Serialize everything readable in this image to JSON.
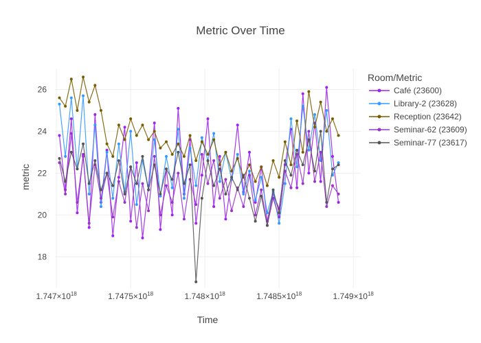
{
  "chart_data": {
    "type": "line",
    "title": "Metric Over Time",
    "xlabel": "Time",
    "ylabel": "metric",
    "xlim": [
      1.74699e+18,
      1.74905e+18
    ],
    "ylim": [
      16.5,
      27.0
    ],
    "x_ticks": [
      1.747e+18,
      1.7475e+18,
      1.748e+18,
      1.7485e+18,
      1.749e+18
    ],
    "x_tick_labels": [
      "1.747×10^18",
      "1.7475×10^18",
      "1.748×10^18",
      "1.7485×10^18",
      "1.749×10^18"
    ],
    "y_ticks": [
      18,
      20,
      22,
      24,
      26
    ],
    "y_tick_labels": [
      "18",
      "20",
      "22",
      "24",
      "26"
    ],
    "grid": true,
    "legend_title": "Room/Metric",
    "legend_position": "top-right",
    "series": [
      {
        "name": "Café (23600)",
        "color": "#a020f0",
        "x": [
          1.74702e+18,
          1.74706e+18,
          1.7471e+18,
          1.74714e+18,
          1.74718e+18,
          1.74722e+18,
          1.74726e+18,
          1.7473e+18,
          1.74734e+18,
          1.74738e+18,
          1.74742e+18,
          1.74746e+18,
          1.7475e+18,
          1.74754e+18,
          1.74758e+18,
          1.74762e+18,
          1.74766e+18,
          1.7477e+18,
          1.74774e+18,
          1.74778e+18,
          1.74782e+18,
          1.74786e+18,
          1.7479e+18,
          1.74794e+18,
          1.74798e+18,
          1.74802e+18,
          1.74806e+18,
          1.7481e+18,
          1.74814e+18,
          1.74818e+18,
          1.74822e+18,
          1.74826e+18,
          1.7483e+18,
          1.74834e+18,
          1.74838e+18,
          1.74842e+18,
          1.74846e+18,
          1.7485e+18,
          1.74854e+18,
          1.74858e+18,
          1.74862e+18,
          1.74866e+18,
          1.7487e+18,
          1.74874e+18,
          1.74878e+18,
          1.74882e+18,
          1.74886e+18,
          1.7489e+18
        ],
        "y": [
          23.8,
          21.2,
          24.6,
          20.1,
          22.9,
          19.4,
          24.8,
          20.6,
          23.1,
          19.0,
          21.8,
          24.2,
          19.7,
          22.5,
          18.9,
          21.4,
          24.4,
          19.3,
          22.2,
          20.0,
          25.1,
          21.0,
          23.6,
          19.6,
          21.9,
          24.6,
          20.4,
          22.8,
          19.8,
          21.7,
          24.3,
          21.1,
          23.0,
          20.6,
          22.3,
          19.7,
          21.0,
          20.3,
          22.4,
          24.1,
          21.3,
          25.8,
          22.0,
          24.4,
          21.6,
          26.1,
          22.8,
          20.6
        ]
      },
      {
        "name": "Library-2 (23628)",
        "color": "#3399ff",
        "x": [
          1.74702e+18,
          1.74706e+18,
          1.7471e+18,
          1.74714e+18,
          1.74718e+18,
          1.74722e+18,
          1.74726e+18,
          1.7473e+18,
          1.74734e+18,
          1.74738e+18,
          1.74742e+18,
          1.74746e+18,
          1.7475e+18,
          1.74754e+18,
          1.74758e+18,
          1.74762e+18,
          1.74766e+18,
          1.7477e+18,
          1.74774e+18,
          1.74778e+18,
          1.74782e+18,
          1.74786e+18,
          1.7479e+18,
          1.74794e+18,
          1.74798e+18,
          1.74802e+18,
          1.74806e+18,
          1.7481e+18,
          1.74814e+18,
          1.74818e+18,
          1.74822e+18,
          1.74826e+18,
          1.7483e+18,
          1.74834e+18,
          1.74838e+18,
          1.74842e+18,
          1.74846e+18,
          1.7485e+18,
          1.74854e+18,
          1.74858e+18,
          1.74862e+18,
          1.74866e+18,
          1.7487e+18,
          1.74874e+18,
          1.74878e+18,
          1.74882e+18,
          1.74886e+18,
          1.7489e+18
        ],
        "y": [
          25.3,
          22.8,
          25.6,
          22.2,
          25.7,
          21.0,
          24.3,
          20.4,
          23.0,
          20.8,
          23.4,
          21.1,
          24.0,
          20.5,
          22.6,
          21.2,
          23.6,
          20.9,
          22.8,
          21.3,
          24.1,
          20.8,
          23.2,
          21.4,
          23.7,
          22.6,
          23.9,
          21.6,
          23.0,
          21.7,
          22.9,
          21.0,
          22.1,
          20.7,
          21.8,
          20.1,
          21.1,
          19.6,
          21.5,
          24.6,
          22.3,
          25.2,
          23.1,
          24.8,
          22.6,
          25.0,
          21.9,
          22.5
        ]
      },
      {
        "name": "Reception (23642)",
        "color": "#7a5c00",
        "x": [
          1.74702e+18,
          1.74706e+18,
          1.7471e+18,
          1.74714e+18,
          1.74718e+18,
          1.74722e+18,
          1.74726e+18,
          1.7473e+18,
          1.74734e+18,
          1.74738e+18,
          1.74742e+18,
          1.74746e+18,
          1.7475e+18,
          1.74754e+18,
          1.74758e+18,
          1.74762e+18,
          1.74766e+18,
          1.7477e+18,
          1.74774e+18,
          1.74778e+18,
          1.74782e+18,
          1.74786e+18,
          1.7479e+18,
          1.74794e+18,
          1.74798e+18,
          1.74802e+18,
          1.74806e+18,
          1.7481e+18,
          1.74814e+18,
          1.74818e+18,
          1.74822e+18,
          1.74826e+18,
          1.7483e+18,
          1.74834e+18,
          1.74838e+18,
          1.74842e+18,
          1.74846e+18,
          1.7485e+18,
          1.74854e+18,
          1.74858e+18,
          1.74862e+18,
          1.74866e+18,
          1.7487e+18,
          1.74874e+18,
          1.74878e+18,
          1.74882e+18,
          1.74886e+18,
          1.7489e+18
        ],
        "y": [
          25.6,
          25.2,
          26.5,
          25.0,
          26.6,
          25.4,
          26.2,
          25.0,
          23.4,
          22.8,
          24.3,
          23.6,
          24.6,
          23.8,
          24.3,
          23.6,
          24.0,
          23.2,
          23.5,
          22.9,
          23.4,
          22.8,
          23.8,
          22.6,
          23.5,
          22.9,
          23.6,
          22.4,
          23.0,
          22.1,
          22.7,
          21.8,
          22.4,
          21.6,
          22.3,
          21.4,
          22.6,
          21.8,
          23.5,
          22.4,
          24.5,
          23.0,
          25.9,
          24.2,
          25.4,
          24.0,
          24.6,
          23.8
        ]
      },
      {
        "name": "Seminar-62 (23609)",
        "color": "#9933cc",
        "x": [
          1.74702e+18,
          1.74706e+18,
          1.7471e+18,
          1.74714e+18,
          1.74718e+18,
          1.74722e+18,
          1.74726e+18,
          1.7473e+18,
          1.74734e+18,
          1.74738e+18,
          1.74742e+18,
          1.74746e+18,
          1.7475e+18,
          1.74754e+18,
          1.74758e+18,
          1.74762e+18,
          1.74766e+18,
          1.7477e+18,
          1.74774e+18,
          1.74778e+18,
          1.74782e+18,
          1.74786e+18,
          1.7479e+18,
          1.74794e+18,
          1.74798e+18,
          1.74802e+18,
          1.74806e+18,
          1.7481e+18,
          1.74814e+18,
          1.74818e+18,
          1.74822e+18,
          1.74826e+18,
          1.7483e+18,
          1.74834e+18,
          1.74838e+18,
          1.74842e+18,
          1.74846e+18,
          1.7485e+18,
          1.74854e+18,
          1.74858e+18,
          1.74862e+18,
          1.74866e+18,
          1.7487e+18,
          1.74874e+18,
          1.74878e+18,
          1.74882e+18,
          1.74886e+18,
          1.7489e+18
        ],
        "y": [
          22.5,
          21.0,
          23.9,
          20.6,
          22.8,
          19.6,
          22.4,
          20.8,
          22.0,
          19.9,
          21.6,
          20.6,
          22.3,
          19.4,
          21.5,
          20.2,
          22.8,
          20.0,
          21.4,
          20.6,
          22.0,
          19.8,
          21.7,
          20.5,
          22.9,
          21.5,
          22.6,
          20.8,
          21.7,
          20.2,
          21.3,
          20.4,
          21.9,
          20.0,
          21.2,
          19.5,
          20.8,
          19.9,
          22.1,
          21.3,
          22.9,
          21.5,
          24.0,
          21.6,
          23.0,
          20.4,
          21.4,
          21.0
        ]
      },
      {
        "name": "Seminar-77 (23617)",
        "color": "#555555",
        "x": [
          1.74702e+18,
          1.74706e+18,
          1.7471e+18,
          1.74714e+18,
          1.74718e+18,
          1.74722e+18,
          1.74726e+18,
          1.7473e+18,
          1.74734e+18,
          1.74738e+18,
          1.74742e+18,
          1.74746e+18,
          1.7475e+18,
          1.74754e+18,
          1.74758e+18,
          1.74762e+18,
          1.74766e+18,
          1.7477e+18,
          1.74774e+18,
          1.74778e+18,
          1.74782e+18,
          1.74786e+18,
          1.7479e+18,
          1.74794e+18,
          1.74798e+18,
          1.74802e+18,
          1.74806e+18,
          1.7481e+18,
          1.74814e+18,
          1.74818e+18,
          1.74822e+18,
          1.74826e+18,
          1.7483e+18,
          1.74834e+18,
          1.74838e+18,
          1.74842e+18,
          1.74846e+18,
          1.7485e+18,
          1.74854e+18,
          1.74858e+18,
          1.74862e+18,
          1.74866e+18,
          1.7487e+18,
          1.74874e+18,
          1.74878e+18,
          1.74882e+18,
          1.74886e+18,
          1.7489e+18
        ],
        "y": [
          22.7,
          21.6,
          23.0,
          22.2,
          23.4,
          21.5,
          22.6,
          21.2,
          22.0,
          21.4,
          22.6,
          21.0,
          22.3,
          21.5,
          22.8,
          21.2,
          22.4,
          21.0,
          22.2,
          21.7,
          23.0,
          21.5,
          22.4,
          16.8,
          20.8,
          22.6,
          21.4,
          22.2,
          21.0,
          21.8,
          21.2,
          21.9,
          20.8,
          19.7,
          20.9,
          19.5,
          21.2,
          20.1,
          22.6,
          21.9,
          23.1,
          22.4,
          23.6,
          22.1,
          24.0,
          20.6,
          22.2,
          22.4
        ]
      }
    ]
  }
}
